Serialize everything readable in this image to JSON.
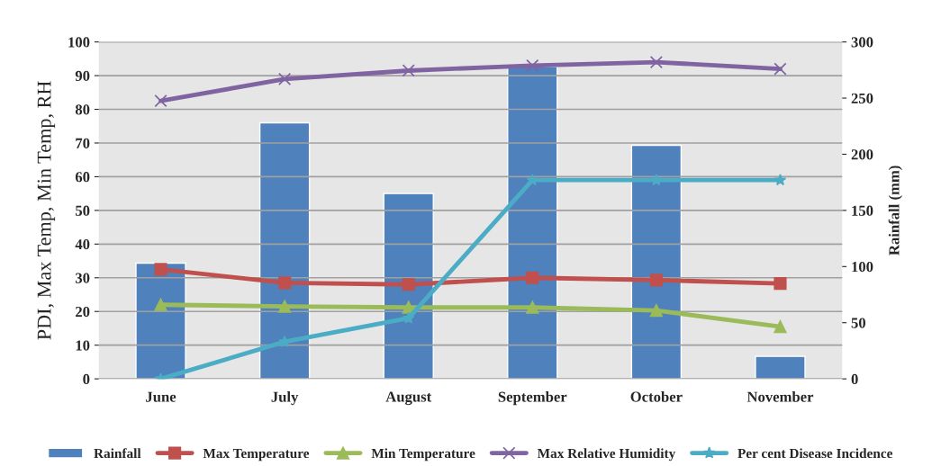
{
  "chart_data": {
    "type": "line",
    "categories": [
      "June",
      "July",
      "August",
      "September",
      "October",
      "November"
    ],
    "ylabel": "PDI, Max Temp, Min Temp, RH",
    "y2label": "Rainfall (mm)",
    "ylim": [
      0,
      100
    ],
    "yticks": [
      0,
      10,
      20,
      30,
      40,
      50,
      60,
      70,
      80,
      90,
      100
    ],
    "y2lim": [
      0,
      300
    ],
    "y2ticks": [
      0,
      50,
      100,
      150,
      200,
      250,
      300
    ],
    "grid": "y",
    "legend": "bottom",
    "series": [
      {
        "name": "Rainfall",
        "type": "bar",
        "axis": "y2",
        "color": "#4f81bd",
        "values": [
          103,
          228,
          165,
          278,
          208,
          20
        ]
      },
      {
        "name": "Max Temperature",
        "color": "#c0504d",
        "marker": "square",
        "values": [
          32.5,
          28.5,
          28,
          30,
          29.3,
          28.3
        ]
      },
      {
        "name": "Min Temperature",
        "color": "#9bbb59",
        "marker": "triangle",
        "values": [
          22,
          21.5,
          21.2,
          21.2,
          20.3,
          15.5
        ]
      },
      {
        "name": "Max Relative Humidity",
        "color": "#8064a2",
        "marker": "cross",
        "values": [
          82.5,
          89,
          91.5,
          93,
          94,
          92
        ]
      },
      {
        "name": "Per cent Disease Incidence",
        "color": "#4bacc6",
        "marker": "star",
        "values": [
          0,
          11,
          18,
          59,
          59,
          59
        ]
      }
    ]
  }
}
